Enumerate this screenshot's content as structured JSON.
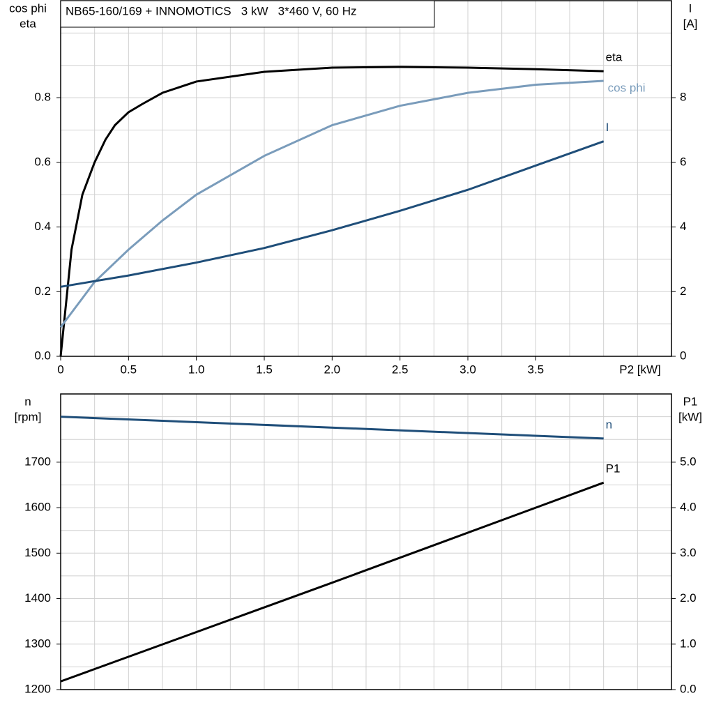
{
  "chart_data": [
    {
      "type": "line",
      "title": "NB65-160/169 + INNOMOTICS   3 kW   3*460 V, 60 Hz",
      "y_label": [
        "cos phi",
        "eta"
      ],
      "y2_label": [
        "I",
        "[A]"
      ],
      "x_label": "P2 [kW]",
      "xlim": [
        0,
        4.5
      ],
      "xticks": [
        0,
        0.5,
        {
          "value": 1,
          "label": "1.0"
        },
        1.5,
        {
          "value": 2,
          "label": "2.0"
        },
        2.5,
        {
          "value": 3,
          "label": "3.0"
        },
        3.5
      ],
      "x_minor_ticks": [
        0.25,
        0.75,
        1.25,
        1.75,
        2.25,
        2.75,
        3.25,
        3.75,
        4,
        4.25
      ],
      "ylim": [
        0,
        1.1
      ],
      "yticks": [
        {
          "value": 0,
          "label": "0.0"
        },
        0.2,
        0.4,
        0.6,
        0.8
      ],
      "y_minor_ticks": [
        0.1,
        0.3,
        0.5,
        0.7,
        0.9,
        1.0
      ],
      "y2lim": [
        0,
        11
      ],
      "y2ticks": [
        0,
        2,
        4,
        6,
        8
      ],
      "grid": true,
      "series": [
        {
          "name": "eta",
          "color": "#000000",
          "x": [
            0,
            0.08,
            0.16,
            0.25,
            0.33,
            0.4,
            0.5,
            0.6,
            0.75,
            1.0,
            1.5,
            2.0,
            2.5,
            3.0,
            3.5,
            4.0
          ],
          "values": [
            0,
            0.33,
            0.5,
            0.6,
            0.67,
            0.715,
            0.755,
            0.78,
            0.815,
            0.85,
            0.88,
            0.893,
            0.895,
            0.893,
            0.888,
            0.882
          ]
        },
        {
          "name": "cos phi",
          "color": "#7a9cbb",
          "x": [
            0,
            0.25,
            0.5,
            0.75,
            1.0,
            1.5,
            2.0,
            2.5,
            3.0,
            3.5,
            4.0
          ],
          "values": [
            0.09,
            0.23,
            0.33,
            0.42,
            0.5,
            0.62,
            0.715,
            0.775,
            0.815,
            0.84,
            0.852
          ]
        },
        {
          "name": "I",
          "color": "#1f4e79",
          "axis": "y2",
          "x": [
            0,
            0.5,
            1.0,
            1.5,
            2.0,
            2.5,
            3.0,
            3.5,
            4.0
          ],
          "values": [
            2.15,
            2.5,
            2.9,
            3.35,
            3.9,
            4.5,
            5.15,
            5.9,
            6.65
          ]
        }
      ]
    },
    {
      "type": "line",
      "y_label": [
        "n",
        "[rpm]"
      ],
      "y2_label": [
        "P1",
        "[kW]"
      ],
      "xlim": [
        0,
        4.5
      ],
      "x_minor_ticks": [
        0.25,
        0.5,
        0.75,
        1,
        1.25,
        1.5,
        1.75,
        2,
        2.25,
        2.5,
        2.75,
        3,
        3.25,
        3.5,
        3.75,
        4,
        4.25
      ],
      "ylim": [
        1200,
        1850
      ],
      "yticks": [
        1200,
        1300,
        1400,
        1500,
        1600,
        1700
      ],
      "y_minor_ticks": [
        1250,
        1350,
        1450,
        1550,
        1650,
        1750,
        1800
      ],
      "y2lim": [
        0,
        6.5
      ],
      "y2ticks": [
        {
          "value": 0,
          "label": "0.0"
        },
        {
          "value": 1,
          "label": "1.0"
        },
        {
          "value": 2,
          "label": "2.0"
        },
        {
          "value": 3,
          "label": "3.0"
        },
        {
          "value": 4,
          "label": "4.0"
        },
        {
          "value": 5,
          "label": "5.0"
        }
      ],
      "grid": true,
      "series": [
        {
          "name": "n",
          "color": "#1f4e79",
          "x": [
            0,
            4.0
          ],
          "values": [
            1800,
            1752
          ]
        },
        {
          "name": "P1",
          "color": "#000000",
          "axis": "y2",
          "x": [
            0,
            2.0,
            4.0
          ],
          "values": [
            0.18,
            2.35,
            4.55
          ]
        }
      ]
    }
  ]
}
